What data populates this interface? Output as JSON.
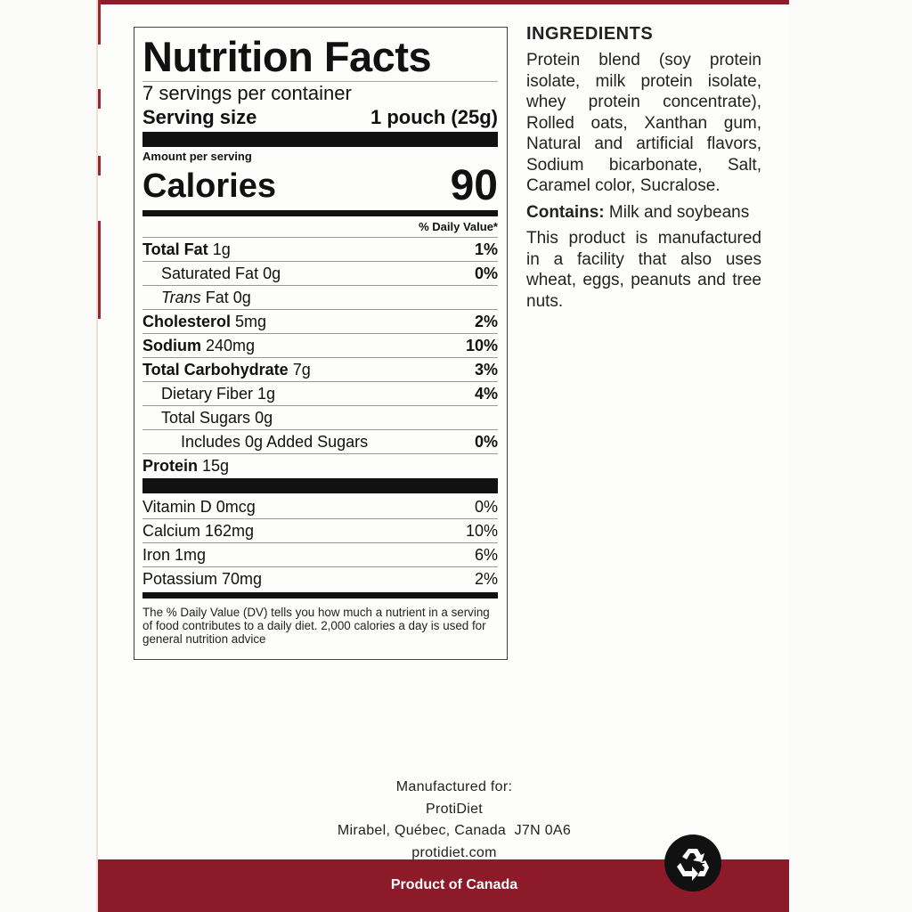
{
  "nutrition": {
    "title": "Nutrition Facts",
    "servings": "7 servings per container",
    "serving_size_label": "Serving size",
    "serving_size_value": "1 pouch (25g)",
    "amount_per_serving": "Amount per serving",
    "calories_label": "Calories",
    "calories_value": "90",
    "dv_header": "% Daily Value*",
    "rows": [
      {
        "name": "Total Fat",
        "amount": "1g",
        "dv": "1%"
      },
      {
        "name": "Saturated Fat",
        "amount": "0g",
        "dv": "0%"
      },
      {
        "name": "Trans",
        "amount": "Fat 0g",
        "dv": ""
      },
      {
        "name": "Cholesterol",
        "amount": "5mg",
        "dv": "2%"
      },
      {
        "name": "Sodium",
        "amount": "240mg",
        "dv": "10%"
      },
      {
        "name": "Total Carbohydrate",
        "amount": "7g",
        "dv": "3%"
      },
      {
        "name": "Dietary Fiber",
        "amount": "1g",
        "dv": "4%"
      },
      {
        "name": "Total Sugars",
        "amount": "0g",
        "dv": ""
      },
      {
        "name": "Includes 0g Added Sugars",
        "amount": "",
        "dv": "0%"
      },
      {
        "name": "Protein",
        "amount": "15g",
        "dv": ""
      }
    ],
    "vitamins": [
      {
        "name": "Vitamin D 0mcg",
        "dv": "0%"
      },
      {
        "name": "Calcium 162mg",
        "dv": "10%"
      },
      {
        "name": "Iron 1mg",
        "dv": "6%"
      },
      {
        "name": "Potassium 70mg",
        "dv": "2%"
      }
    ],
    "footnote": "The % Daily Value (DV) tells you how much a nutrient in a serving of food contributes to a daily diet. 2,000 calories a day is used for general nutrition advice"
  },
  "ingredients": {
    "title": "INGREDIENTS",
    "text": "Protein blend (soy protein isolate, milk protein isolate, whey protein concentrate), Rolled oats, Xanthan gum, Natural and artificial flavors, Sodium bicarbonate, Salt, Caramel color, Sucralose.",
    "contains_label": "Contains:",
    "contains_text": "Milk and soybeans",
    "facility": "This product is manufactured in a facility that also uses wheat, eggs, peanuts and tree nuts."
  },
  "manufacturer": {
    "label": "Manufactured for:",
    "name": "ProtiDiet",
    "address": "Mirabel, Québec, Canada  J7N 0A6",
    "website": "protidiet.com"
  },
  "origin": "Product of Canada",
  "icons": {
    "recycle": "recycle-icon"
  },
  "colors": {
    "band": "#8c1a29"
  }
}
